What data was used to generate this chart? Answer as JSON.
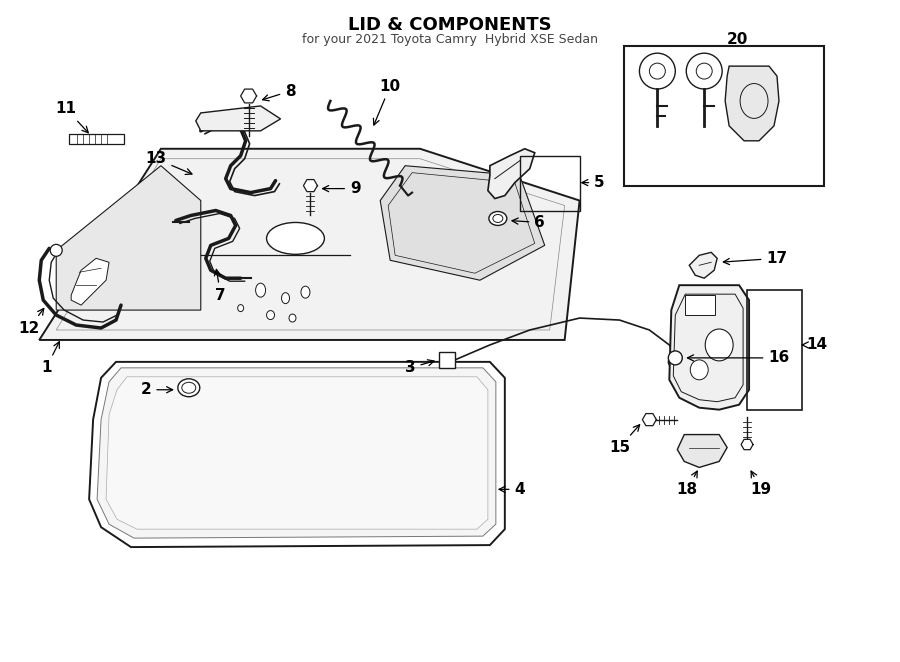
{
  "title": "LID & COMPONENTS",
  "subtitle": "for your 2021 Toyota Camry  Hybrid XSE Sedan",
  "bg_color": "#ffffff",
  "lc": "#1a1a1a",
  "fig_width": 9.0,
  "fig_height": 6.62,
  "dpi": 100,
  "label_fontsize": 11,
  "title_fontsize": 13,
  "subtitle_fontsize": 9
}
